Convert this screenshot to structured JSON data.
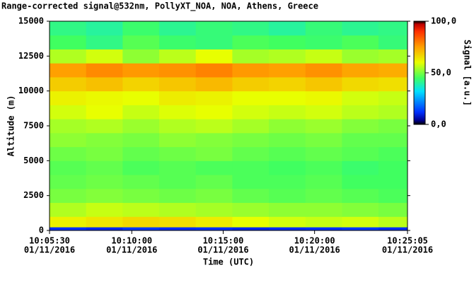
{
  "chart_data": {
    "type": "heatmap",
    "title": "Range-corrected signal@532nm, PollyXT_NOA, NOA, Athens, Greece",
    "xlabel": "Time (UTC)",
    "ylabel": "Altitude (m)",
    "colorbar_label": "Signal [a.u.]",
    "x": [
      "10:06:30",
      "10:08:30",
      "10:10:30",
      "10:12:30",
      "10:14:30",
      "10:16:30",
      "10:18:30",
      "10:20:30",
      "10:22:30",
      "10:24:30"
    ],
    "y_edges": [
      0,
      250,
      1000,
      2000,
      3000,
      4000,
      5000,
      6000,
      7000,
      8000,
      9000,
      10000,
      11000,
      12000,
      13000,
      14000,
      15000
    ],
    "z": [
      [
        12,
        10,
        13,
        11,
        12,
        10,
        11,
        12,
        13,
        11
      ],
      [
        62,
        64,
        66,
        65,
        63,
        60,
        58,
        57,
        58,
        56
      ],
      [
        55,
        57,
        56,
        55,
        54,
        53,
        52,
        52,
        51,
        50
      ],
      [
        50,
        51,
        50,
        49,
        50,
        48,
        47,
        48,
        47,
        46
      ],
      [
        48,
        49,
        48,
        47,
        48,
        46,
        46,
        47,
        45,
        45
      ],
      [
        47,
        48,
        46,
        47,
        46,
        46,
        45,
        46,
        44,
        45
      ],
      [
        49,
        50,
        48,
        49,
        50,
        48,
        47,
        48,
        47,
        46
      ],
      [
        52,
        51,
        50,
        52,
        51,
        50,
        49,
        50,
        48,
        48
      ],
      [
        54,
        55,
        53,
        55,
        56,
        54,
        52,
        53,
        51,
        50
      ],
      [
        58,
        60,
        57,
        59,
        60,
        58,
        57,
        58,
        56,
        55
      ],
      [
        62,
        61,
        60,
        63,
        62,
        60,
        60,
        61,
        58,
        57
      ],
      [
        68,
        70,
        67,
        69,
        71,
        68,
        67,
        69,
        66,
        65
      ],
      [
        75,
        78,
        76,
        77,
        79,
        76,
        75,
        77,
        74,
        73
      ],
      [
        55,
        58,
        52,
        56,
        60,
        54,
        55,
        57,
        53,
        54
      ],
      [
        45,
        42,
        47,
        44,
        43,
        46,
        45,
        44,
        46,
        43
      ],
      [
        42,
        40,
        44,
        41,
        43,
        42,
        40,
        43,
        41,
        42
      ]
    ],
    "xlim": [
      "10:05:30",
      "10:25:05"
    ],
    "xticks": [
      {
        "value": "10:05:30",
        "label": "10:05:30",
        "date": "01/11/2016"
      },
      {
        "value": "10:10:00",
        "label": "10:10:00",
        "date": "01/11/2016"
      },
      {
        "value": "10:15:00",
        "label": "10:15:00",
        "date": "01/11/2016"
      },
      {
        "value": "10:20:00",
        "label": "10:20:00",
        "date": "01/11/2016"
      },
      {
        "value": "10:25:05",
        "label": "10:25:05",
        "date": "01/11/2016"
      }
    ],
    "ylim": [
      0,
      15000
    ],
    "yticks": [
      0,
      2500,
      5000,
      7500,
      10000,
      12500,
      15000
    ],
    "clim": [
      0,
      100
    ],
    "cticks": [
      {
        "value": 0,
        "label": "0,0"
      },
      {
        "value": 50,
        "label": "50,0"
      },
      {
        "value": 100,
        "label": "100,0"
      }
    ]
  }
}
